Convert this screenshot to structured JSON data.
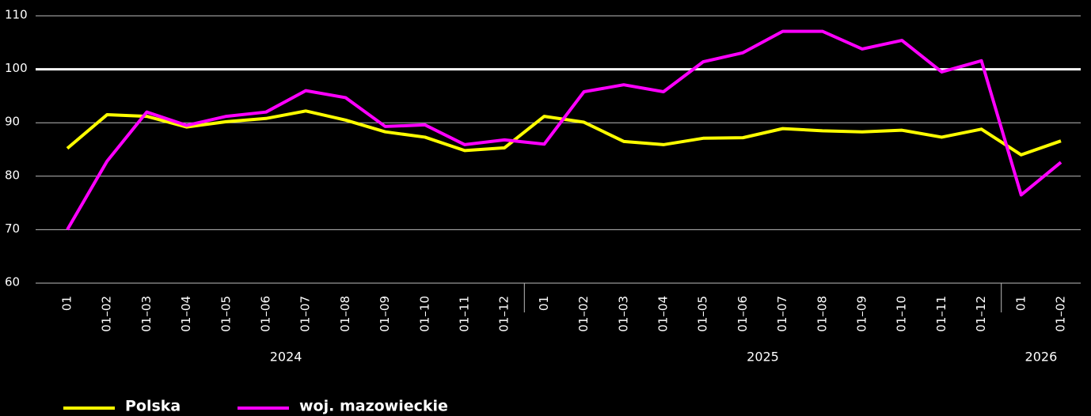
{
  "chart_data": {
    "type": "line",
    "category_groups": [
      {
        "label": "2024",
        "categories": [
          "01",
          "01–02",
          "01–03",
          "01–04",
          "01–05",
          "01–06",
          "01–07",
          "01–08",
          "01–09",
          "01–10",
          "01–11",
          "01–12"
        ]
      },
      {
        "label": "2025",
        "categories": [
          "01",
          "01–02",
          "01–03",
          "01–04",
          "01–05",
          "01–06",
          "01–07",
          "01–08",
          "01–09",
          "01–10",
          "01–11",
          "01–12"
        ]
      },
      {
        "label": "2026",
        "categories": [
          "01",
          "01–02"
        ]
      }
    ],
    "series": [
      {
        "name": "Polska",
        "color": "#ffff00",
        "values": [
          85.2,
          91.5,
          91.2,
          89.2,
          90.2,
          90.8,
          92.2,
          90.5,
          88.3,
          87.3,
          84.8,
          85.3,
          91.2,
          90.1,
          86.5,
          85.9,
          87.1,
          87.2,
          88.9,
          88.5,
          88.3,
          88.6,
          87.3,
          88.8,
          84.0,
          86.6
        ]
      },
      {
        "name": "woj. mazowieckie",
        "color": "#ff00ff",
        "values": [
          70.0,
          82.8,
          92.0,
          89.5,
          91.2,
          92.0,
          96.0,
          94.7,
          89.3,
          89.6,
          85.9,
          86.8,
          86.0,
          95.8,
          97.1,
          95.8,
          101.4,
          103.1,
          107.1,
          107.1,
          103.8,
          105.4,
          99.5,
          101.6,
          76.5,
          82.6
        ]
      }
    ],
    "ylim": [
      60,
      110
    ],
    "yticks": [
      60,
      70,
      80,
      90,
      100,
      110
    ],
    "grid": true,
    "reference_line": {
      "value": 100,
      "color": "#ffffff"
    },
    "legend": "bottom-left"
  }
}
